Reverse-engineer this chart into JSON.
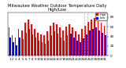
{
  "title": "Milwaukee Weather Outdoor Temperature Daily High/Low",
  "title_fontsize": 3.8,
  "highs": [
    58,
    42,
    38,
    55,
    52,
    68,
    75,
    65,
    55,
    48,
    45,
    42,
    50,
    62,
    68,
    65,
    58,
    52,
    60,
    65,
    58,
    50,
    45,
    55,
    62,
    70,
    75,
    78,
    72,
    68,
    62
  ],
  "lows": [
    38,
    28,
    22,
    38,
    35,
    48,
    55,
    45,
    38,
    32,
    28,
    25,
    32,
    42,
    50,
    46,
    38,
    32,
    42,
    46,
    38,
    32,
    28,
    36,
    44,
    52,
    56,
    58,
    52,
    48,
    42
  ],
  "high_color": "#ff0000",
  "low_color": "#0000ee",
  "bg_color": "#ffffff",
  "plot_bg": "#ffffff",
  "ylim_min": 0,
  "ylim_max": 90,
  "ytick_fontsize": 3.0,
  "xtick_fontsize": 2.8,
  "bar_width": 0.4,
  "dashed_vline_positions": [
    24.5,
    25.5
  ],
  "legend_dot_high": "#ff0000",
  "legend_dot_low": "#0000ee"
}
